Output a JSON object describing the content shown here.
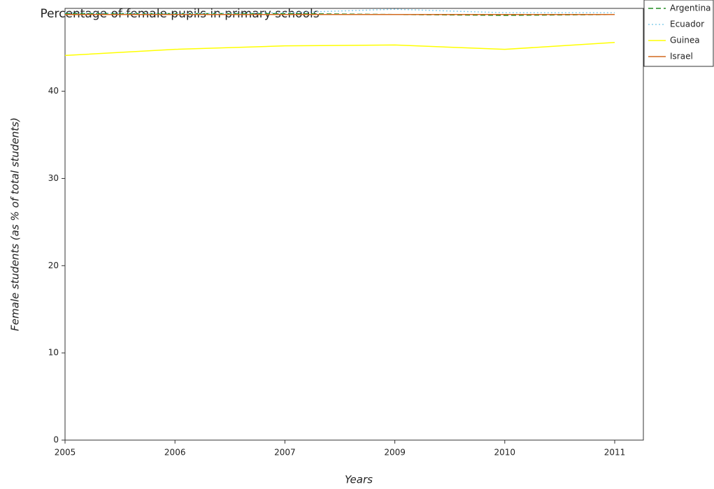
{
  "chart_data": {
    "type": "line",
    "title": "Percentage of female pupils in primary schools",
    "x_label": "Years",
    "y_label": "Female students (as % of total students)",
    "categories": [
      "2005",
      "2006",
      "2007",
      "2009",
      "2010",
      "2011"
    ],
    "series": [
      {
        "name": "Argentina",
        "color": "#228b22",
        "dash": "dashed",
        "values": [
          48.9,
          48.9,
          48.9,
          48.8,
          48.7,
          48.8
        ]
      },
      {
        "name": "Ecuador",
        "color": "#87ceeb",
        "dash": "dotted",
        "values": [
          49.0,
          48.9,
          49.0,
          49.4,
          49.0,
          49.0
        ]
      },
      {
        "name": "Guinea",
        "color": "#ffff00",
        "dash": "solid",
        "values": [
          44.1,
          44.8,
          45.2,
          45.3,
          44.8,
          45.6
        ]
      },
      {
        "name": "Israel",
        "color": "#d2691e",
        "dash": "solid",
        "values": [
          48.8,
          48.8,
          48.8,
          48.8,
          48.8,
          48.8
        ]
      }
    ],
    "ylim": [
      0,
      49.5
    ],
    "yticks": [
      0,
      10,
      20,
      30,
      40
    ]
  }
}
